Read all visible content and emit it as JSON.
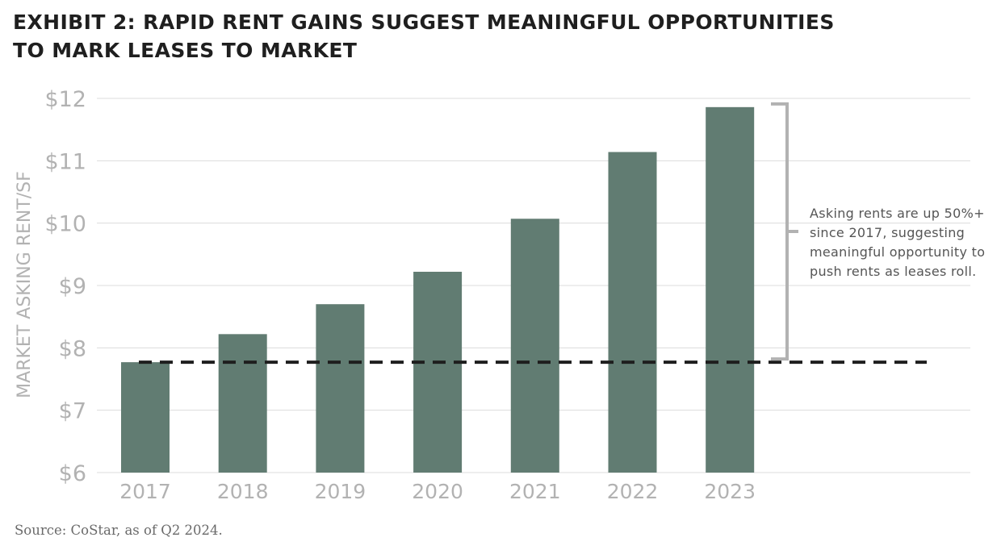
{
  "title": {
    "line1": "EXHIBIT 2: RAPID RENT GAINS SUGGEST MEANINGFUL OPPORTUNITIES",
    "line2": "TO MARK LEASES TO MARKET"
  },
  "source": "Source: CoStar, as of Q2 2024.",
  "colors": {
    "bar": "#617c72",
    "grid": "#dcdcdc",
    "axis_text": "#b2b2b2",
    "dashed_line": "#1e1e1e",
    "bracket": "#b2b2b2",
    "annotation_text": "#555555"
  },
  "chart_data": {
    "type": "bar",
    "title": "",
    "xlabel": "",
    "ylabel": "MARKET ASKING RENT/SF",
    "categories": [
      "2017",
      "2018",
      "2019",
      "2020",
      "2021",
      "2022",
      "2023"
    ],
    "values": [
      7.77,
      8.22,
      8.7,
      9.22,
      10.07,
      11.14,
      11.86
    ],
    "ylim": [
      6,
      12
    ],
    "yticks": [
      {
        "value": 6,
        "label": "$6"
      },
      {
        "value": 7,
        "label": "$7"
      },
      {
        "value": 8,
        "label": "$8"
      },
      {
        "value": 9,
        "label": "$9"
      },
      {
        "value": 10,
        "label": "$10"
      },
      {
        "value": 11,
        "label": "$11"
      },
      {
        "value": 12,
        "label": "$12"
      }
    ],
    "grid": true,
    "reference_line": {
      "value": 7.77,
      "style": "dashed"
    },
    "bracket": {
      "from": 7.77,
      "to": 11.86
    },
    "annotation": [
      "Asking rents are up 50%+",
      "since 2017, suggesting",
      "meaningful opportunity to",
      "push rents as leases roll."
    ]
  }
}
